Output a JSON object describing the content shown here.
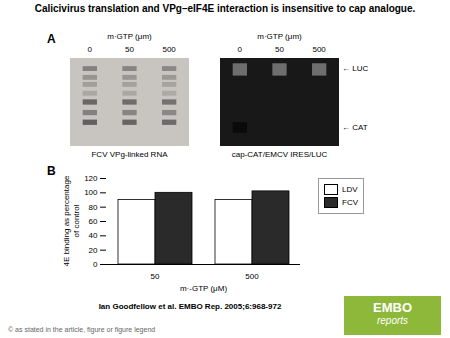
{
  "chart_data": {
    "type": "bar",
    "title": "Calicivirus translation and VPg–eIF4E interaction is insensitive to cap analogue.",
    "annotations": [
      "A",
      "m·GTP (μm)",
      "m·GTP (μm)",
      "0",
      "50",
      "500",
      "FCV VPg-linked RNA",
      "cap-CAT/EMCV IRES/LUC",
      "← LUC",
      "← CAT",
      "B",
      "Ian Goodfellow et al. EMBO Rep. 2005;6:968-972",
      "© as stated in the article, figure or figure legend",
      "EMBO",
      "reports"
    ],
    "categories": [
      "50",
      "500"
    ],
    "series": [
      {
        "name": "LDV",
        "color": "white",
        "values": [
          90,
          90
        ]
      },
      {
        "name": "FCV",
        "color": "#2a2a2a",
        "values": [
          100,
          102
        ]
      }
    ],
    "xlabel": "m·-GTP (μM)",
    "ylabel": "4E binding as percentage\nof control",
    "ylim": [
      0,
      120
    ],
    "yticks": [
      0,
      20,
      40,
      60,
      80,
      100,
      120
    ],
    "legend": "upper right"
  }
}
